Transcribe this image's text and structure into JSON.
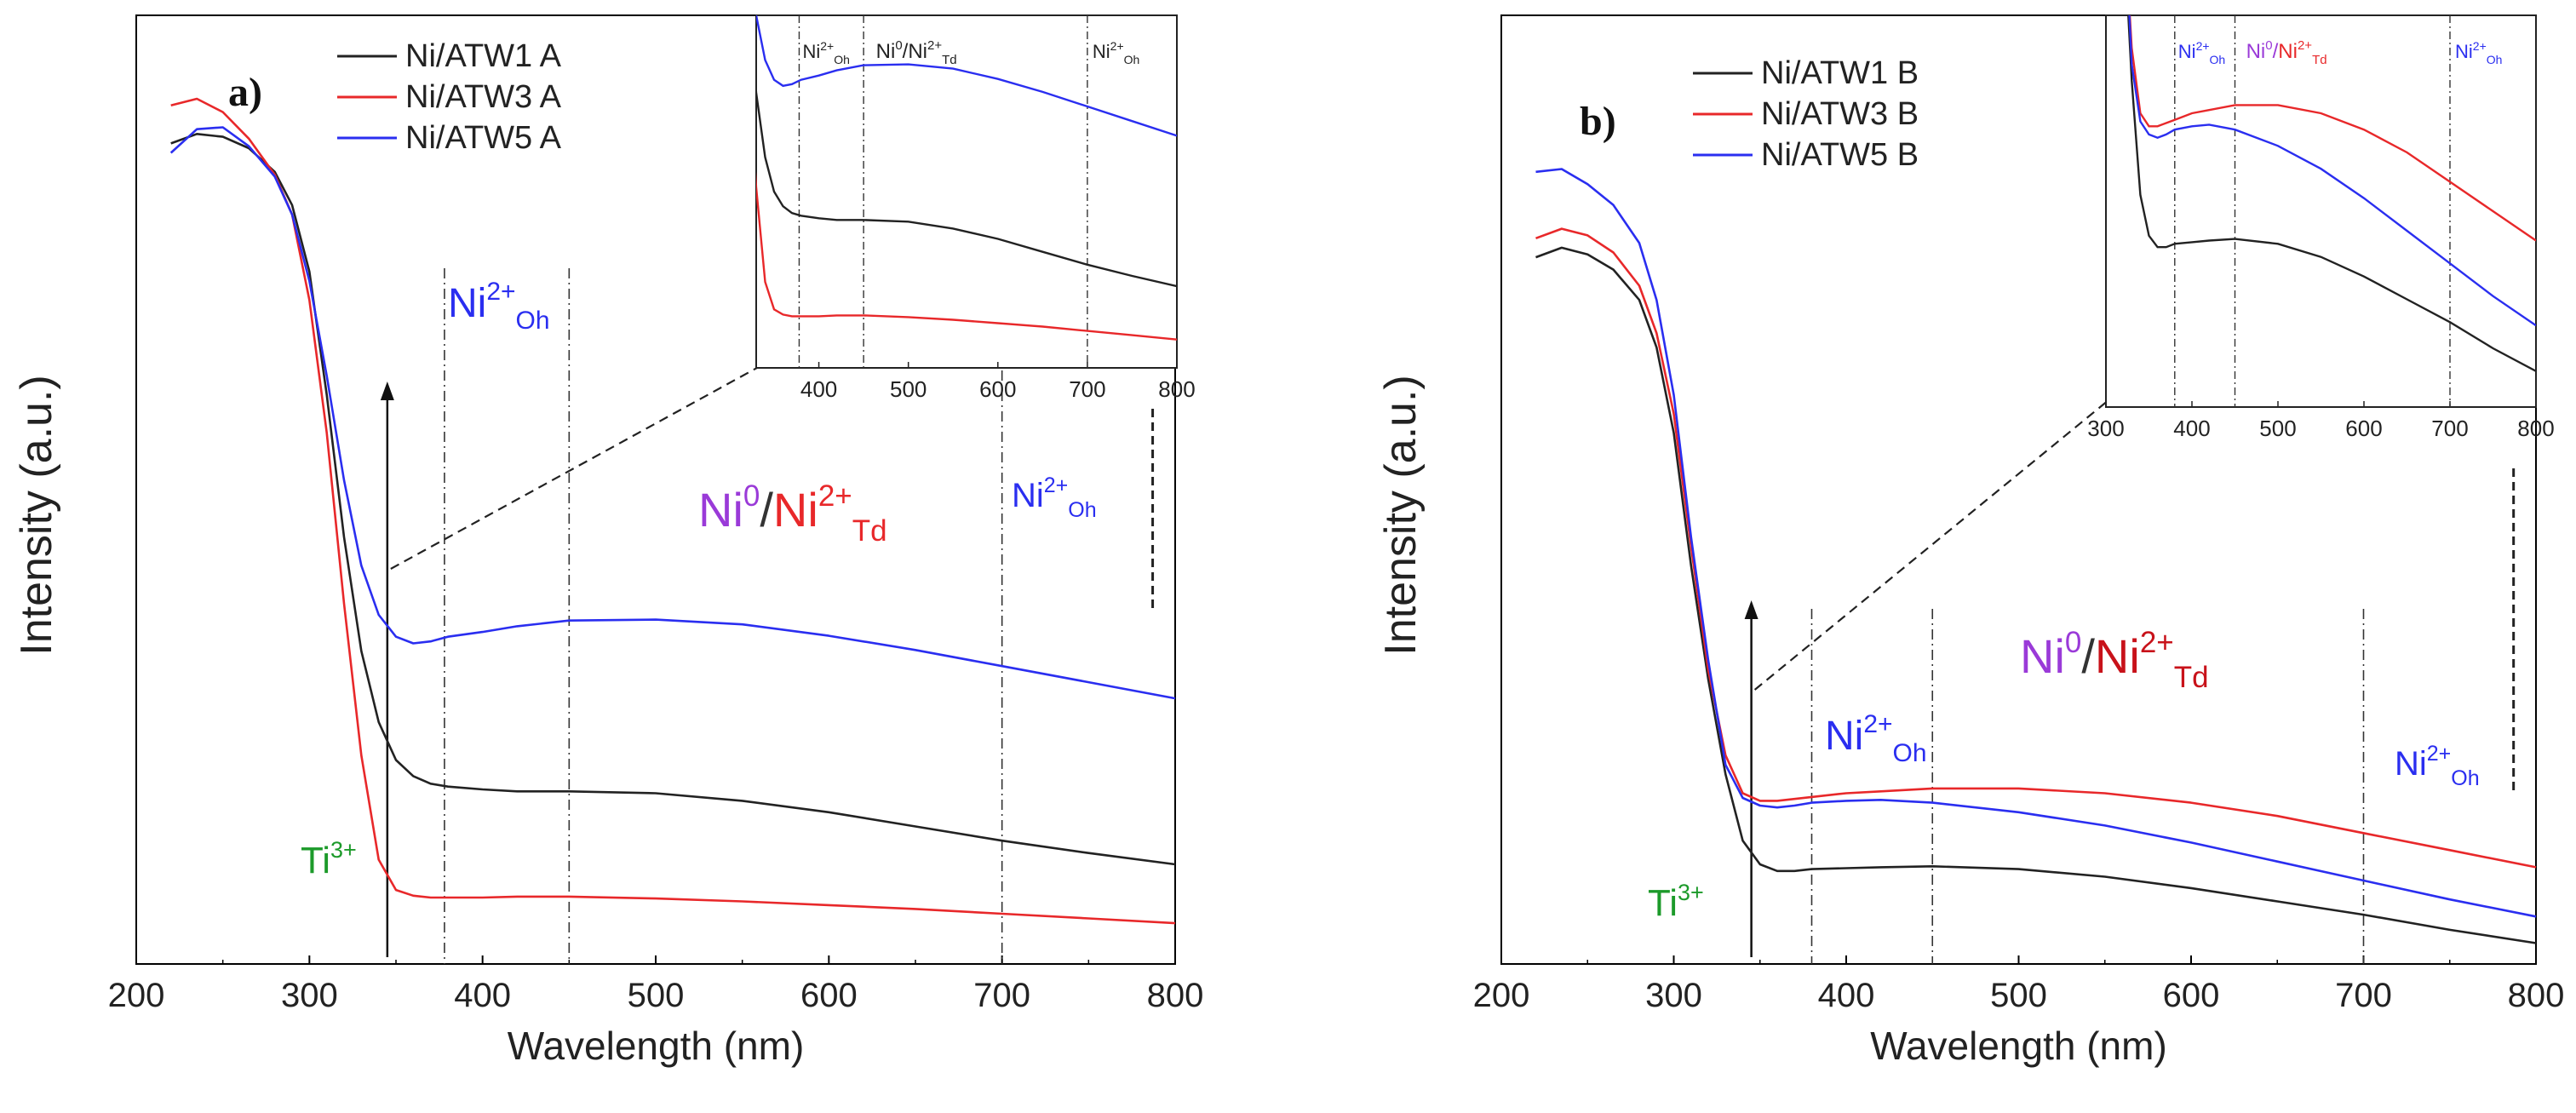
{
  "colors": {
    "black": "#222222",
    "red": "#e8282a",
    "blue": "#2a2ef0",
    "green": "#1c9a2a",
    "purple": "#9a3ad8",
    "axis": "#000000"
  },
  "chart_data": [
    {
      "type": "line",
      "panel_label": "a)",
      "xlabel": "Wavelength (nm)",
      "ylabel": "Intensity (a.u.)",
      "xlim": [
        200,
        800
      ],
      "ylim": [
        0,
        1
      ],
      "xticks": [
        "200",
        "300",
        "400",
        "500",
        "600",
        "700",
        "800"
      ],
      "series": [
        {
          "name": "Ni/ATW1 A",
          "color": "#222222",
          "x": [
            220,
            235,
            250,
            265,
            280,
            290,
            300,
            310,
            320,
            330,
            340,
            350,
            360,
            370,
            380,
            400,
            420,
            450,
            500,
            550,
            600,
            650,
            700,
            750,
            800
          ],
          "y": [
            0.865,
            0.875,
            0.872,
            0.86,
            0.835,
            0.8,
            0.73,
            0.6,
            0.45,
            0.33,
            0.255,
            0.215,
            0.198,
            0.19,
            0.187,
            0.184,
            0.182,
            0.182,
            0.18,
            0.172,
            0.16,
            0.145,
            0.13,
            0.117,
            0.105
          ]
        },
        {
          "name": "Ni/ATW3 A",
          "color": "#e8282a",
          "x": [
            220,
            235,
            250,
            265,
            280,
            290,
            300,
            310,
            320,
            330,
            340,
            350,
            360,
            370,
            380,
            400,
            420,
            450,
            500,
            550,
            600,
            650,
            700,
            750,
            800
          ],
          "y": [
            0.905,
            0.912,
            0.898,
            0.87,
            0.832,
            0.79,
            0.7,
            0.56,
            0.38,
            0.22,
            0.11,
            0.078,
            0.072,
            0.07,
            0.07,
            0.07,
            0.071,
            0.071,
            0.069,
            0.066,
            0.062,
            0.058,
            0.053,
            0.048,
            0.043
          ]
        },
        {
          "name": "Ni/ATW5 A",
          "color": "#2a2ef0",
          "x": [
            220,
            235,
            250,
            265,
            280,
            290,
            300,
            310,
            320,
            330,
            340,
            350,
            360,
            370,
            380,
            400,
            420,
            450,
            500,
            550,
            600,
            650,
            700,
            750,
            800
          ],
          "y": [
            0.855,
            0.88,
            0.882,
            0.862,
            0.83,
            0.79,
            0.72,
            0.62,
            0.51,
            0.42,
            0.368,
            0.345,
            0.338,
            0.34,
            0.345,
            0.35,
            0.356,
            0.362,
            0.363,
            0.358,
            0.346,
            0.331,
            0.314,
            0.297,
            0.28
          ]
        }
      ],
      "annotations": {
        "ni2_oh_main": {
          "base": "Ni",
          "sup": "2+",
          "sub": "Oh"
        },
        "ni0_ni2_td": {
          "a_base": "Ni",
          "a_sup": "0",
          "slash": "/",
          "b_base": "Ni",
          "b_sup": "2+",
          "b_sub": "Td"
        },
        "ni2_oh_right": {
          "base": "Ni",
          "sup": "2+",
          "sub": "Oh"
        },
        "ti3": {
          "base": "Ti",
          "sup": "3+"
        }
      },
      "markers_x": [
        345,
        378,
        450,
        700,
        787
      ],
      "inset": {
        "xlim": [
          330,
          800
        ],
        "xticks": [
          "400",
          "500",
          "600",
          "700",
          "800"
        ],
        "labels": {
          "ni2_oh_left": {
            "base": "Ni",
            "sup": "2+",
            "sub": "Oh"
          },
          "ni0_ni2_td": {
            "a_base": "Ni",
            "a_sup": "0",
            "slash": "/",
            "b_base": "Ni",
            "b_sup": "2+",
            "b_sub": "Td"
          },
          "ni2_oh_right": {
            "base": "Ni",
            "sup": "2+",
            "sub": "Oh"
          }
        }
      }
    },
    {
      "type": "line",
      "panel_label": "b)",
      "xlabel": "Wavelength (nm)",
      "ylabel": "Intensity (a.u.)",
      "xlim": [
        200,
        800
      ],
      "ylim": [
        0,
        1
      ],
      "xticks": [
        "200",
        "300",
        "400",
        "500",
        "600",
        "700",
        "800"
      ],
      "series": [
        {
          "name": "Ni/ATW1 B",
          "color": "#222222",
          "x": [
            220,
            235,
            250,
            265,
            280,
            290,
            300,
            310,
            320,
            330,
            340,
            350,
            360,
            370,
            380,
            400,
            420,
            450,
            500,
            550,
            600,
            650,
            700,
            750,
            800
          ],
          "y": [
            0.745,
            0.755,
            0.748,
            0.732,
            0.7,
            0.65,
            0.56,
            0.42,
            0.3,
            0.2,
            0.13,
            0.105,
            0.098,
            0.098,
            0.1,
            0.101,
            0.102,
            0.103,
            0.1,
            0.092,
            0.08,
            0.066,
            0.052,
            0.036,
            0.022
          ]
        },
        {
          "name": "Ni/ATW3 B",
          "color": "#e8282a",
          "x": [
            220,
            235,
            250,
            265,
            280,
            290,
            300,
            310,
            320,
            330,
            340,
            350,
            360,
            370,
            380,
            400,
            420,
            450,
            500,
            550,
            600,
            650,
            700,
            750,
            800
          ],
          "y": [
            0.765,
            0.775,
            0.768,
            0.75,
            0.715,
            0.665,
            0.58,
            0.44,
            0.31,
            0.22,
            0.18,
            0.172,
            0.172,
            0.174,
            0.176,
            0.18,
            0.182,
            0.185,
            0.185,
            0.18,
            0.17,
            0.156,
            0.138,
            0.12,
            0.102
          ]
        },
        {
          "name": "Ni/ATW5 B",
          "color": "#2a2ef0",
          "x": [
            220,
            235,
            250,
            265,
            280,
            290,
            300,
            310,
            320,
            330,
            340,
            350,
            360,
            370,
            380,
            400,
            420,
            450,
            500,
            550,
            600,
            650,
            700,
            750,
            800
          ],
          "y": [
            0.835,
            0.838,
            0.822,
            0.8,
            0.76,
            0.7,
            0.6,
            0.45,
            0.32,
            0.21,
            0.175,
            0.167,
            0.165,
            0.167,
            0.17,
            0.172,
            0.173,
            0.17,
            0.16,
            0.146,
            0.128,
            0.108,
            0.088,
            0.068,
            0.05
          ]
        }
      ],
      "annotations": {
        "ni2_oh_main": {
          "base": "Ni",
          "sup": "2+",
          "sub": "Oh"
        },
        "ni0_ni2_td": {
          "a_base": "Ni",
          "a_sup": "0",
          "slash": "/",
          "b_base": "Ni",
          "b_sup": "2+",
          "b_sub": "Td"
        },
        "ni2_oh_right": {
          "base": "Ni",
          "sup": "2+",
          "sub": "Oh"
        },
        "ti3": {
          "base": "Ti",
          "sup": "3+"
        }
      },
      "markers_x": [
        345,
        380,
        450,
        700,
        787
      ],
      "inset": {
        "xlim": [
          300,
          800
        ],
        "xticks": [
          "300",
          "400",
          "500",
          "600",
          "700",
          "800"
        ],
        "labels": {
          "ni2_oh_left": {
            "base": "Ni",
            "sup": "2+",
            "sub": "Oh"
          },
          "ni0_ni2_td": {
            "a_base": "Ni",
            "a_sup": "0",
            "slash": "/",
            "b_base": "Ni",
            "b_sup": "2+",
            "b_sub": "Td"
          },
          "ni2_oh_right": {
            "base": "Ni",
            "sup": "2+",
            "sub": "Oh"
          }
        }
      }
    }
  ]
}
